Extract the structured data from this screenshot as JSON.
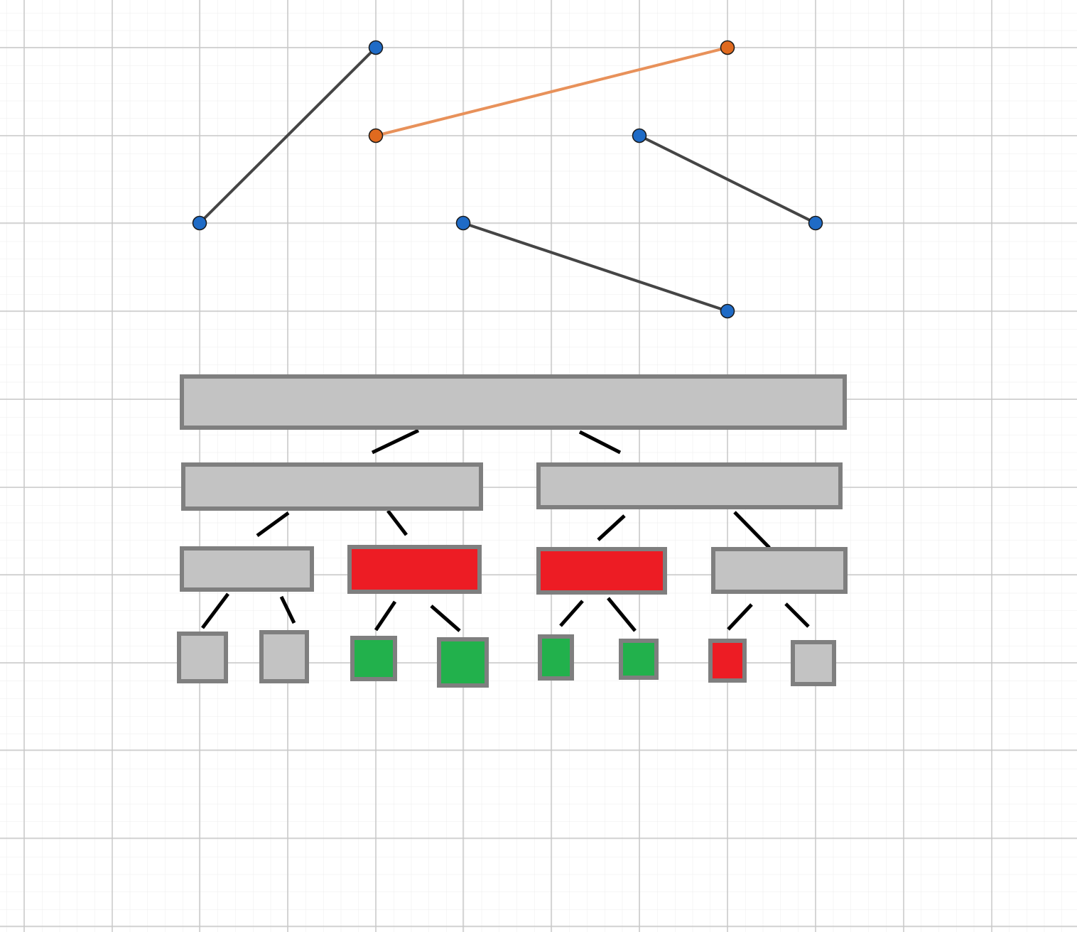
{
  "colors": {
    "background": "#ffffff",
    "grid_minor": "#e9e9e9",
    "grid_major": "#c8c8c8",
    "segment_dark": "#454545",
    "segment_orange": "#e8915a",
    "point_blue": "#1f6bc6",
    "point_orange": "#e06a1f",
    "box_gray": "#c3c3c3",
    "box_red": "#ed1c24",
    "box_green": "#22b14c",
    "box_border": "#7f7f7f",
    "connector": "#000000"
  },
  "segments": [
    {
      "id": "segment-1",
      "color": "dark"
    },
    {
      "id": "segment-2",
      "color": "orange"
    },
    {
      "id": "segment-3",
      "color": "dark"
    },
    {
      "id": "segment-4",
      "color": "dark"
    }
  ],
  "tree": {
    "root": {
      "fill": "gray"
    },
    "level1": [
      {
        "fill": "gray"
      },
      {
        "fill": "gray"
      }
    ],
    "level2": [
      {
        "fill": "gray"
      },
      {
        "fill": "red"
      },
      {
        "fill": "red"
      },
      {
        "fill": "gray"
      }
    ],
    "leaves": [
      {
        "fill": "gray"
      },
      {
        "fill": "gray"
      },
      {
        "fill": "green"
      },
      {
        "fill": "green"
      },
      {
        "fill": "green"
      },
      {
        "fill": "green"
      },
      {
        "fill": "red"
      },
      {
        "fill": "gray"
      }
    ]
  }
}
